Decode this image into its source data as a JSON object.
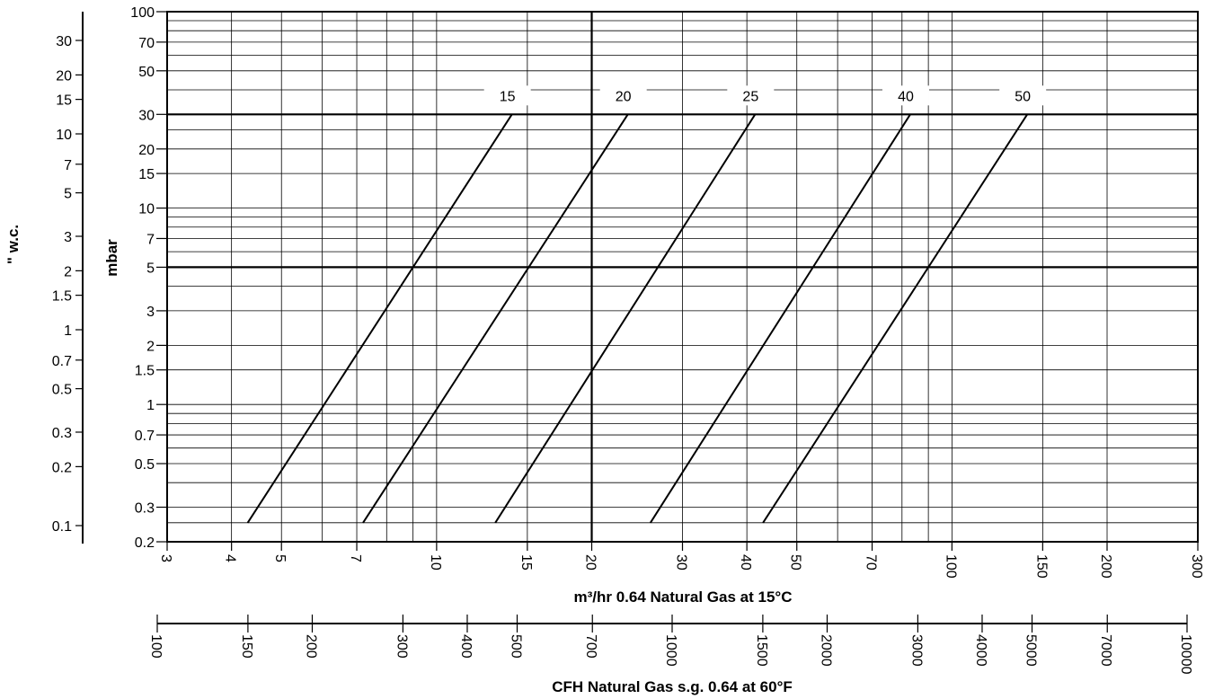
{
  "chart_data": {
    "type": "line",
    "x_axis": {
      "label": "m³/hr 0.64 Natural Gas at 15°C",
      "scale": "log",
      "range": [
        3,
        300
      ],
      "ticks": [
        "3",
        "4",
        "5",
        "7",
        "10",
        "15",
        "20",
        "30",
        "40",
        "50",
        "70",
        "100",
        "150",
        "200",
        "300"
      ],
      "minor_grid": [
        6,
        8,
        9,
        60,
        80,
        90
      ]
    },
    "x2_axis": {
      "label": "CFH Natural Gas s.g. 0.64 at 60°F",
      "scale": "log",
      "range": [
        100,
        10000
      ],
      "ticks": [
        "100",
        "150",
        "200",
        "300",
        "400",
        "500",
        "700",
        "1000",
        "1500",
        "2000",
        "3000",
        "4000",
        "5000",
        "7000",
        "10000"
      ]
    },
    "y_axis": {
      "label": "mbar",
      "scale": "log",
      "range": [
        0.2,
        100
      ],
      "ticks": [
        "0.2",
        "0.3",
        "0.5",
        "0.7",
        "1",
        "1.5",
        "2",
        "3",
        "5",
        "7",
        "10",
        "15",
        "20",
        "30",
        "50",
        "70",
        "100"
      ]
    },
    "y2_axis": {
      "label": "\" w.c.",
      "scale": "log",
      "ticks": [
        "0.1",
        "0.2",
        "0.3",
        "0.5",
        "0.7",
        "1",
        "1.5",
        "2",
        "3",
        "5",
        "7",
        "10",
        "15",
        "20",
        "30"
      ]
    },
    "series": [
      {
        "name": "15",
        "x": [
          4.3,
          14
        ],
        "y": [
          0.25,
          30
        ]
      },
      {
        "name": "20",
        "x": [
          7.2,
          23.5
        ],
        "y": [
          0.25,
          30
        ]
      },
      {
        "name": "25",
        "x": [
          13,
          41.5
        ],
        "y": [
          0.25,
          30
        ]
      },
      {
        "name": "40",
        "x": [
          26,
          83
        ],
        "y": [
          0.25,
          30
        ]
      },
      {
        "name": "50",
        "x": [
          43,
          140
        ],
        "y": [
          0.25,
          30
        ]
      }
    ],
    "reference_lines": {
      "y": [
        5,
        30
      ],
      "x": [
        20
      ]
    },
    "grid": true,
    "legend": "none"
  }
}
